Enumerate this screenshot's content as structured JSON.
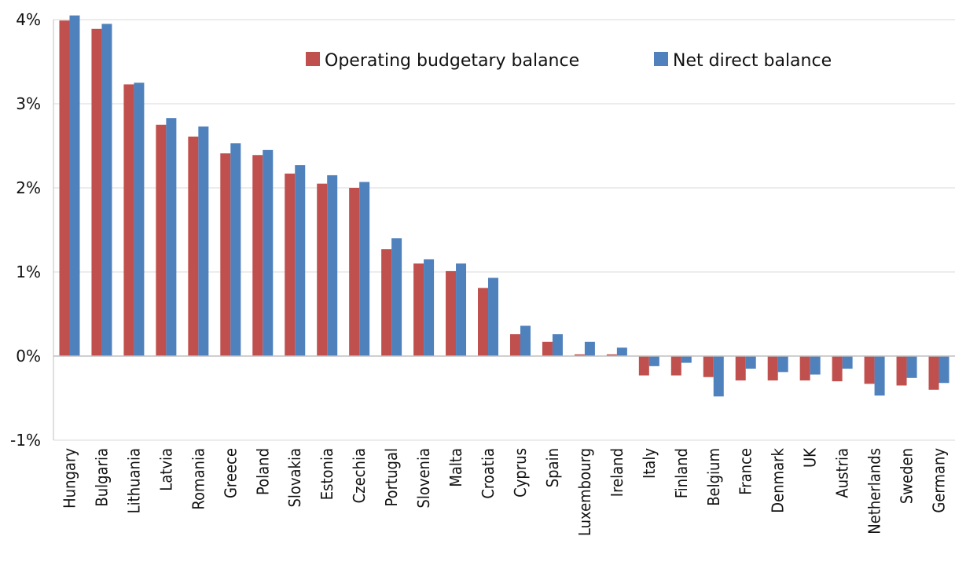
{
  "chart_data": {
    "type": "bar",
    "title": "",
    "xlabel": "",
    "ylabel": "",
    "ylim": [
      -1,
      4
    ],
    "yticks": [
      4,
      3,
      2,
      1,
      0,
      -1
    ],
    "ytick_labels": [
      "4%",
      "3%",
      "2%",
      "1%",
      "0%",
      "-1%"
    ],
    "grid": true,
    "legend_position": "top-right",
    "categories": [
      "Hungary",
      "Bulgaria",
      "Lithuania",
      "Latvia",
      "Romania",
      "Greece",
      "Poland",
      "Slovakia",
      "Estonia",
      "Czechia",
      "Portugal",
      "Slovenia",
      "Malta",
      "Croatia",
      "Cyprus",
      "Spain",
      "Luxembourg",
      "Ireland",
      "Italy",
      "Finland",
      "Belgium",
      "France",
      "Denmark",
      "UK",
      "Austria",
      "Netherlands",
      "Sweden",
      "Germany"
    ],
    "series": [
      {
        "name": "Operating budgetary balance",
        "color": "#c0504d",
        "values": [
          3.99,
          3.89,
          3.23,
          2.75,
          2.61,
          2.41,
          2.39,
          2.17,
          2.05,
          2.0,
          1.27,
          1.1,
          1.01,
          0.81,
          0.26,
          0.17,
          0.02,
          0.02,
          -0.23,
          -0.23,
          -0.25,
          -0.29,
          -0.29,
          -0.29,
          -0.3,
          -0.33,
          -0.35,
          -0.4
        ]
      },
      {
        "name": "Net direct balance",
        "color": "#4f81bd",
        "values": [
          4.05,
          3.95,
          3.25,
          2.83,
          2.73,
          2.53,
          2.45,
          2.27,
          2.15,
          2.07,
          1.4,
          1.15,
          1.1,
          0.93,
          0.36,
          0.26,
          0.17,
          0.1,
          -0.12,
          -0.08,
          -0.48,
          -0.15,
          -0.19,
          -0.22,
          -0.15,
          -0.47,
          -0.26,
          -0.32
        ]
      }
    ]
  }
}
